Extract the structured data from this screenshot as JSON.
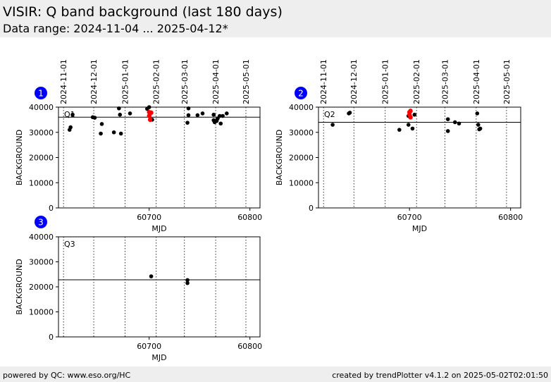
{
  "header": {
    "title": "VISIR: Q band background (last 180 days)",
    "subtitle": "Data range: 2024-11-04 ... 2025-04-12*"
  },
  "footer": {
    "left": "powered by QC: www.eso.org/HC",
    "right": "created by trendPlotter v4.1.2 on 2025-05-02T02:01:50"
  },
  "chart_data": [
    {
      "type": "scatter",
      "badge": "1",
      "panel_label": "Q1",
      "xlabel": "MJD",
      "ylabel": "BACKGROUND",
      "xlim": [
        60610,
        60810
      ],
      "ylim": [
        0,
        40000
      ],
      "x_ticks": [
        60700,
        60800
      ],
      "y_ticks": [
        0,
        10000,
        20000,
        30000,
        40000
      ],
      "date_ticks": [
        {
          "label": "2024-11-01",
          "mjd": 60615
        },
        {
          "label": "2024-12-01",
          "mjd": 60645
        },
        {
          "label": "2025-01-01",
          "mjd": 60676
        },
        {
          "label": "2025-02-01",
          "mjd": 60707
        },
        {
          "label": "2025-03-01",
          "mjd": 60735
        },
        {
          "label": "2025-04-01",
          "mjd": 60766
        },
        {
          "label": "2025-05-01",
          "mjd": 60796
        }
      ],
      "reference_line": 36000,
      "points_black": [
        [
          60621,
          31000
        ],
        [
          60622,
          32000
        ],
        [
          60624,
          37000
        ],
        [
          60644,
          36000
        ],
        [
          60646,
          35800
        ],
        [
          60652,
          29500
        ],
        [
          60653,
          33300
        ],
        [
          60665,
          30000
        ],
        [
          60670,
          39500
        ],
        [
          60671,
          37000
        ],
        [
          60672,
          29500
        ],
        [
          60681,
          37500
        ],
        [
          60698,
          39300
        ],
        [
          60700,
          40000
        ],
        [
          60703,
          35000
        ],
        [
          60738,
          33800
        ],
        [
          60739,
          39500
        ],
        [
          60739,
          36800
        ],
        [
          60748,
          36800
        ],
        [
          60753,
          37500
        ],
        [
          60764,
          37000
        ],
        [
          60764,
          34800
        ],
        [
          60765,
          34000
        ],
        [
          60767,
          34500
        ],
        [
          60768,
          35500
        ],
        [
          60770,
          36500
        ],
        [
          60771,
          33500
        ],
        [
          60773,
          36500
        ],
        [
          60777,
          37500
        ]
      ],
      "points_red": [
        [
          60700,
          38000
        ],
        [
          60700,
          36500
        ],
        [
          60701,
          35000
        ],
        [
          60702,
          37800
        ]
      ]
    },
    {
      "type": "scatter",
      "badge": "2",
      "panel_label": "Q2",
      "xlabel": "MJD",
      "ylabel": "BACKGROUND",
      "xlim": [
        60610,
        60810
      ],
      "ylim": [
        0,
        40000
      ],
      "x_ticks": [
        60700,
        60800
      ],
      "y_ticks": [
        0,
        10000,
        20000,
        30000,
        40000
      ],
      "date_ticks": [
        {
          "label": "2024-11-01",
          "mjd": 60615
        },
        {
          "label": "2024-12-01",
          "mjd": 60645
        },
        {
          "label": "2025-01-01",
          "mjd": 60676
        },
        {
          "label": "2025-02-01",
          "mjd": 60707
        },
        {
          "label": "2025-03-01",
          "mjd": 60735
        },
        {
          "label": "2025-04-01",
          "mjd": 60766
        },
        {
          "label": "2025-05-01",
          "mjd": 60796
        }
      ],
      "reference_line": 34000,
      "points_black": [
        [
          60624,
          33000
        ],
        [
          60640,
          37500
        ],
        [
          60641,
          37800
        ],
        [
          60690,
          31000
        ],
        [
          60699,
          36500
        ],
        [
          60699,
          33000
        ],
        [
          60703,
          31500
        ],
        [
          60705,
          37000
        ],
        [
          60738,
          35200
        ],
        [
          60738,
          30500
        ],
        [
          60745,
          34000
        ],
        [
          60749,
          33500
        ],
        [
          60767,
          37500
        ],
        [
          60768,
          33000
        ],
        [
          60769,
          31200
        ],
        [
          60770,
          31500
        ]
      ],
      "points_red": [
        [
          60700,
          38000
        ],
        [
          60700,
          37000
        ],
        [
          60701,
          38500
        ],
        [
          60701,
          36000
        ]
      ]
    },
    {
      "type": "scatter",
      "badge": "3",
      "panel_label": "Q3",
      "xlabel": "MJD",
      "ylabel": "BACKGROUND",
      "xlim": [
        60610,
        60810
      ],
      "ylim": [
        0,
        40000
      ],
      "x_ticks": [
        60700,
        60800
      ],
      "y_ticks": [
        0,
        10000,
        20000,
        30000,
        40000
      ],
      "date_ticks": [
        {
          "label": "",
          "mjd": 60615
        },
        {
          "label": "",
          "mjd": 60645
        },
        {
          "label": "",
          "mjd": 60676
        },
        {
          "label": "",
          "mjd": 60707
        },
        {
          "label": "",
          "mjd": 60735
        },
        {
          "label": "",
          "mjd": 60766
        },
        {
          "label": "",
          "mjd": 60796
        }
      ],
      "reference_line": 22800,
      "points_black": [
        [
          60702,
          24200
        ],
        [
          60738,
          22700
        ],
        [
          60738,
          21500
        ]
      ],
      "points_red": []
    }
  ]
}
